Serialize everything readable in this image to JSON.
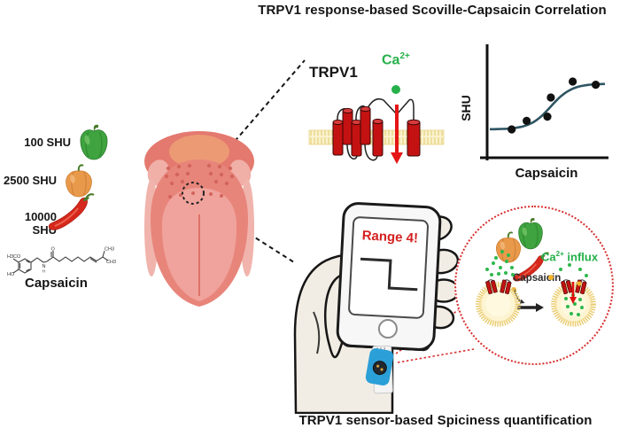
{
  "figure": {
    "title_top": "TRPV1 response-based Scoville-Capsaicin Correlation",
    "title_bottom": "TRPV1 sensor-based Spiciness quantification"
  },
  "scoville_samples": [
    {
      "label": "100 SHU",
      "pepper": "green-bell-pepper"
    },
    {
      "label": "2500 SHU",
      "pepper": "orange-habanero"
    },
    {
      "label": "10000 SHU",
      "pepper": "red-chili"
    }
  ],
  "molecule": {
    "name": "Capsaicin",
    "atom_labels": {
      "h3co": "H3CO",
      "ho": "HO",
      "o": "O",
      "n": "N",
      "h": "H",
      "ch3_top": "CH3",
      "ch3_bottom": "CH3"
    }
  },
  "trpv1_panel": {
    "label": "TRPV1",
    "ion": "Ca",
    "ion_charge": "2+"
  },
  "chart_data": {
    "type": "scatter",
    "title": "",
    "xlabel": "Capsaicin",
    "ylabel": "SHU",
    "x_axis": {
      "range": [
        0,
        1
      ],
      "ticks": "none"
    },
    "y_axis": {
      "range": [
        0,
        1
      ],
      "ticks": "none"
    },
    "points": [
      [
        0.19,
        0.25
      ],
      [
        0.32,
        0.33
      ],
      [
        0.5,
        0.37
      ],
      [
        0.53,
        0.55
      ],
      [
        0.72,
        0.7
      ],
      [
        0.92,
        0.67
      ]
    ],
    "fit_curve": {
      "shape": "sigmoid",
      "low": 0.25,
      "high": 0.68,
      "x_mid": 0.53,
      "steepness": 11
    },
    "grid": false,
    "legend": "none",
    "curve_color": "#2e5563",
    "point_color": "#111111"
  },
  "phone": {
    "display_text": "Range 4!"
  },
  "inset": {
    "ion": "Ca",
    "ion_charge": "2+",
    "influx_suffix": " influx",
    "capsaicin_label": "Capsaicin"
  },
  "colors": {
    "ion_green": "#25b04a",
    "channel_red": "#c41212",
    "alert_red": "#d42020",
    "sensor_blue": "#2b9fd8",
    "inset_border_red": "#d83030",
    "membrane_yellow": "#f5e8bd",
    "tongue_pink": "#e8857b",
    "curve_teal": "#2e5563"
  }
}
